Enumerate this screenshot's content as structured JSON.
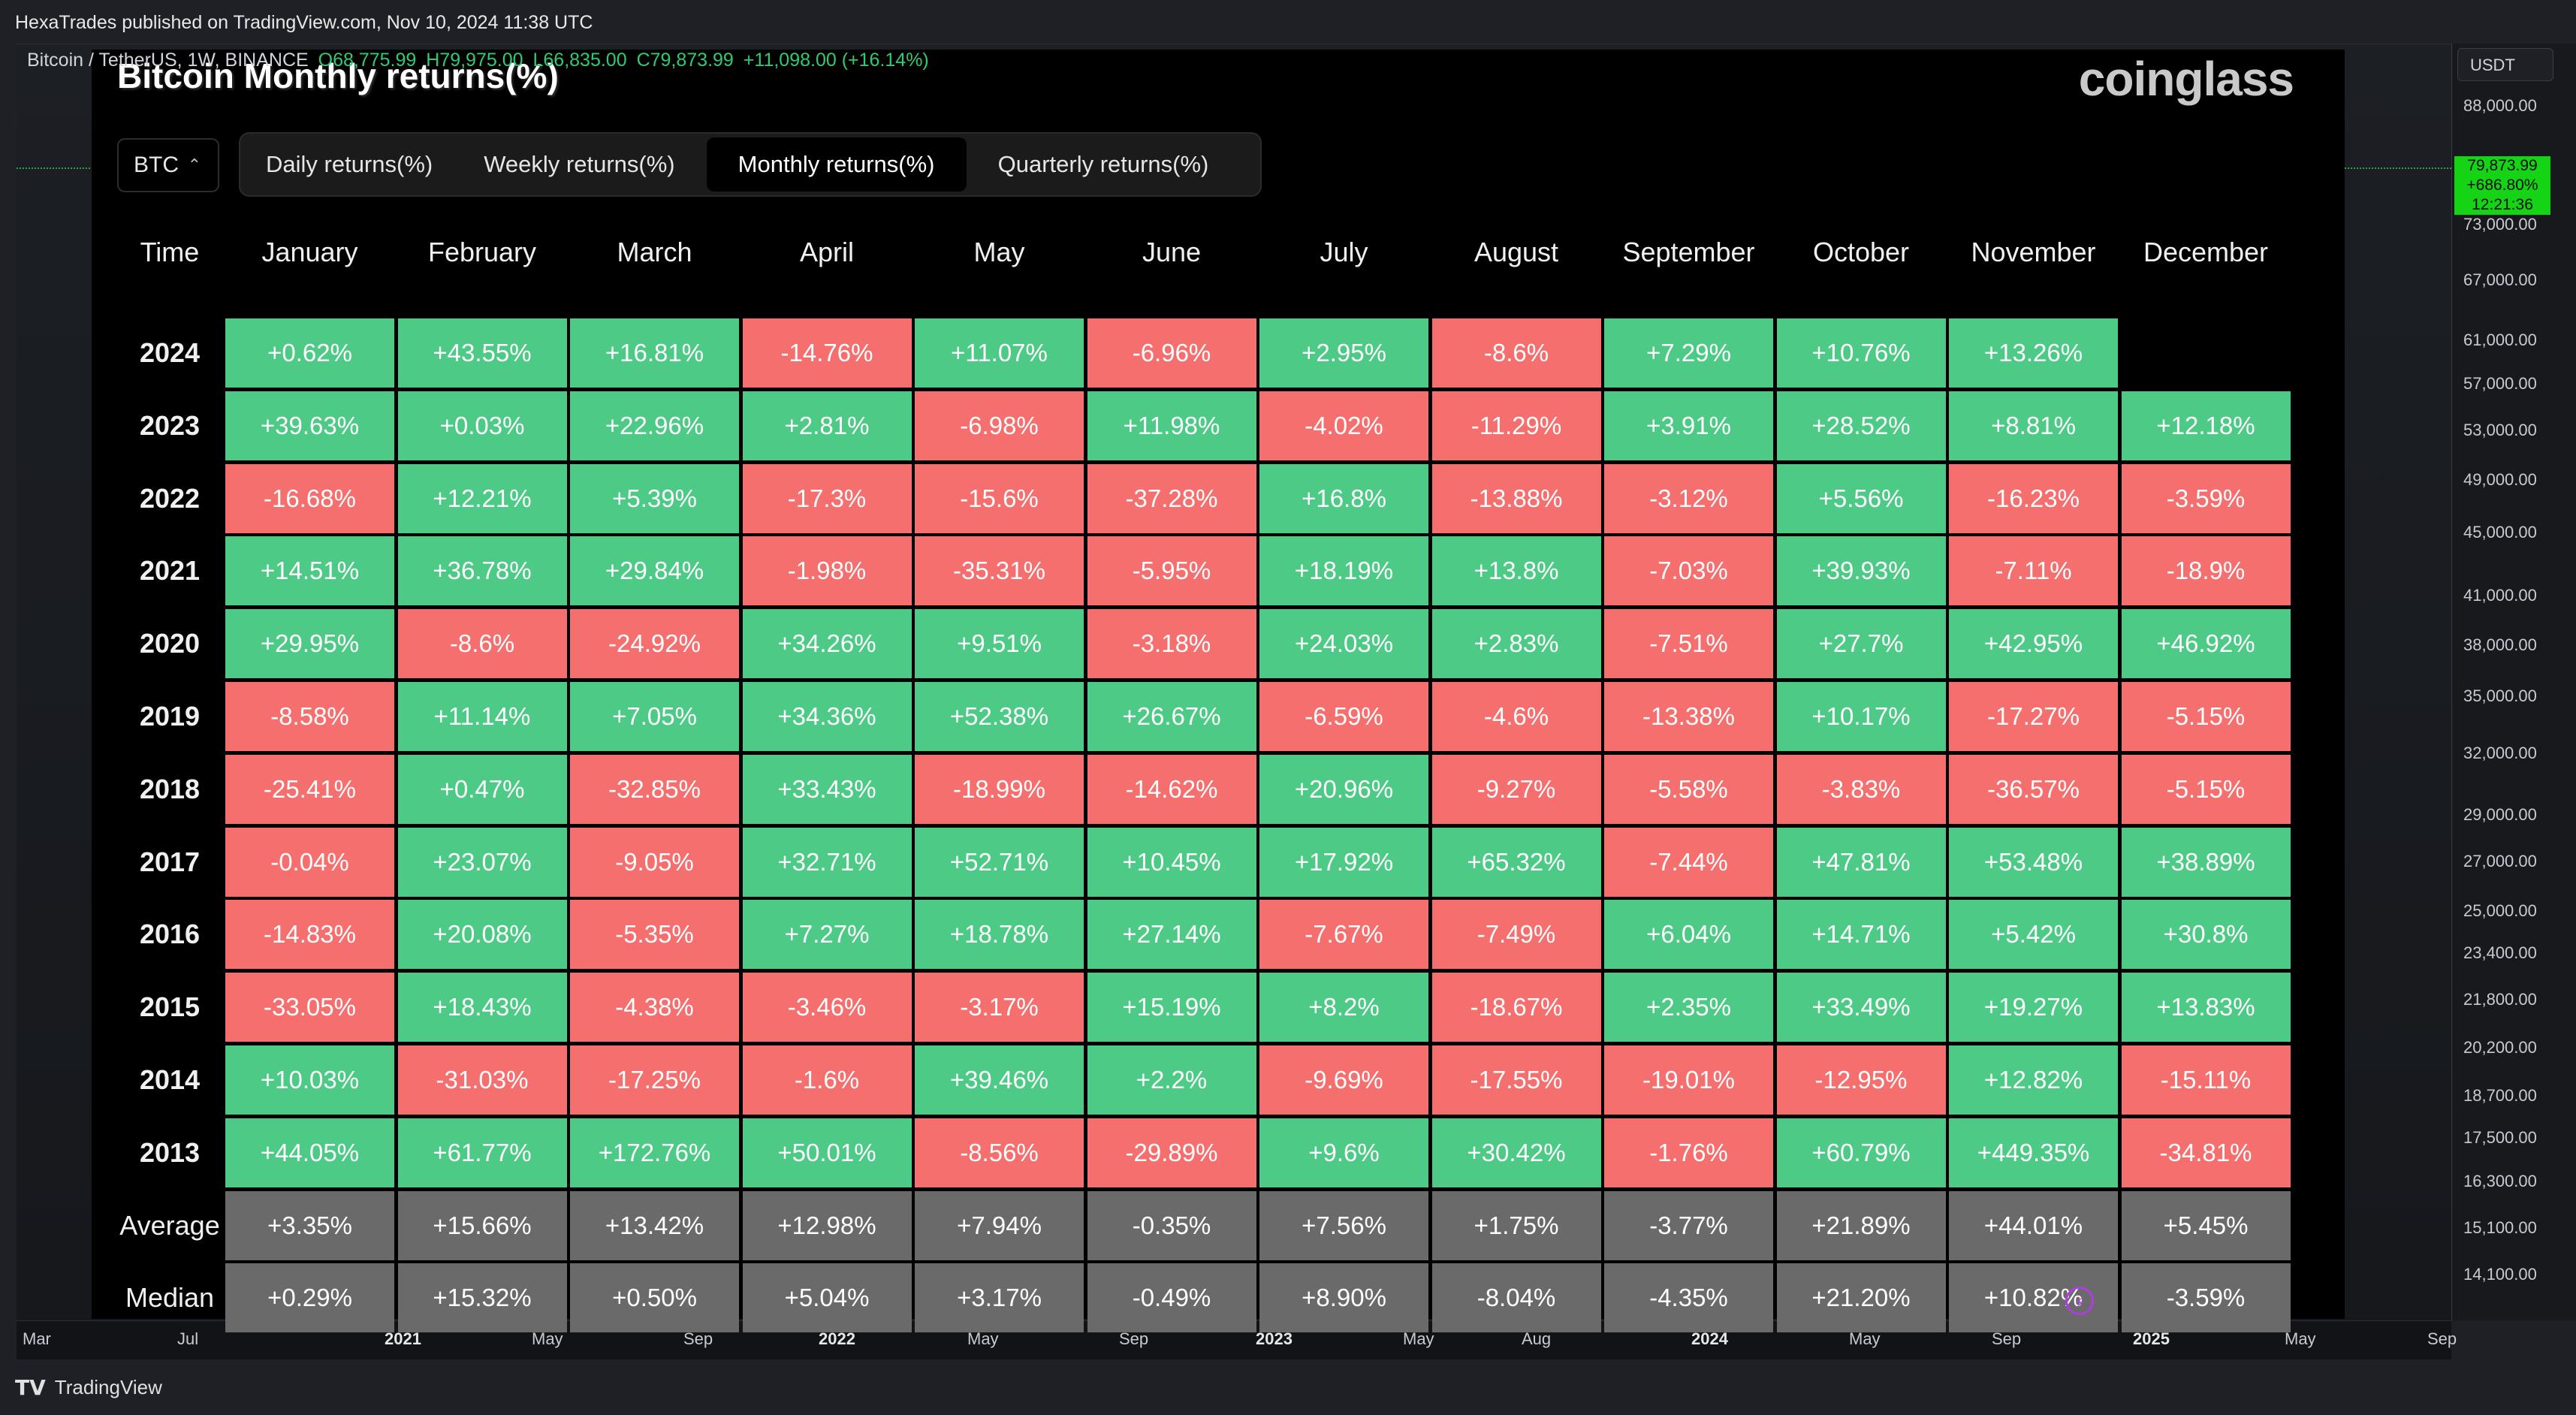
{
  "publish_info": "HexaTrades published on TradingView.com, Nov 10, 2024 11:38 UTC",
  "symbol_line": {
    "name": "Bitcoin / TetherUS, 1W, BINANCE",
    "open": "O68,775.99",
    "high": "H79,975.00",
    "low": "L66,835.00",
    "close": "C79,873.99",
    "change": "+11,098.00 (+16.14%)"
  },
  "right_scale": {
    "currency": "USDT",
    "labels": [
      "88,000.00",
      "73,000.00",
      "67,000.00",
      "61,000.00",
      "57,000.00",
      "53,000.00",
      "49,000.00",
      "45,000.00",
      "41,000.00",
      "38,000.00",
      "35,000.00",
      "32,000.00",
      "29,000.00",
      "27,000.00",
      "25,000.00",
      "23,400.00",
      "21,800.00",
      "20,200.00",
      "18,700.00",
      "17,500.00",
      "16,300.00",
      "15,100.00",
      "14,100.00"
    ],
    "price_tag": {
      "price": "79,873.99",
      "change": "+686.80%",
      "countdown": "12:21:36"
    }
  },
  "time_axis": [
    {
      "label": "Mar",
      "year": false
    },
    {
      "label": "Jul",
      "year": false
    },
    {
      "label": "2021",
      "year": true
    },
    {
      "label": "May",
      "year": false
    },
    {
      "label": "Sep",
      "year": false
    },
    {
      "label": "2022",
      "year": true
    },
    {
      "label": "May",
      "year": false
    },
    {
      "label": "Sep",
      "year": false
    },
    {
      "label": "2023",
      "year": true
    },
    {
      "label": "May",
      "year": false
    },
    {
      "label": "Aug",
      "year": false
    },
    {
      "label": "2024",
      "year": true
    },
    {
      "label": "May",
      "year": false
    },
    {
      "label": "Sep",
      "year": false
    },
    {
      "label": "2025",
      "year": true
    },
    {
      "label": "May",
      "year": false
    },
    {
      "label": "Sep",
      "year": false
    }
  ],
  "footer": {
    "brand": "TradingView",
    "logo": "tradingview-logo"
  },
  "panel": {
    "title": "Bitcoin Monthly returns(%)",
    "brand": "coinglass",
    "coin": "BTC",
    "tabs": [
      {
        "label": "Daily returns(%)",
        "active": false
      },
      {
        "label": "Weekly returns(%)",
        "active": false
      },
      {
        "label": "Monthly returns(%)",
        "active": true
      },
      {
        "label": "Quarterly returns(%)",
        "active": false
      }
    ],
    "corner": "Time",
    "months": [
      "January",
      "February",
      "March",
      "April",
      "May",
      "June",
      "July",
      "August",
      "September",
      "October",
      "November",
      "December"
    ],
    "rows": [
      {
        "label": "2024",
        "kind": "year",
        "values": [
          "+0.62%",
          "+43.55%",
          "+16.81%",
          "-14.76%",
          "+11.07%",
          "-6.96%",
          "+2.95%",
          "-8.6%",
          "+7.29%",
          "+10.76%",
          "+13.26%",
          ""
        ]
      },
      {
        "label": "2023",
        "kind": "year",
        "values": [
          "+39.63%",
          "+0.03%",
          "+22.96%",
          "+2.81%",
          "-6.98%",
          "+11.98%",
          "-4.02%",
          "-11.29%",
          "+3.91%",
          "+28.52%",
          "+8.81%",
          "+12.18%"
        ]
      },
      {
        "label": "2022",
        "kind": "year",
        "values": [
          "-16.68%",
          "+12.21%",
          "+5.39%",
          "-17.3%",
          "-15.6%",
          "-37.28%",
          "+16.8%",
          "-13.88%",
          "-3.12%",
          "+5.56%",
          "-16.23%",
          "-3.59%"
        ]
      },
      {
        "label": "2021",
        "kind": "year",
        "values": [
          "+14.51%",
          "+36.78%",
          "+29.84%",
          "-1.98%",
          "-35.31%",
          "-5.95%",
          "+18.19%",
          "+13.8%",
          "-7.03%",
          "+39.93%",
          "-7.11%",
          "-18.9%"
        ]
      },
      {
        "label": "2020",
        "kind": "year",
        "values": [
          "+29.95%",
          "-8.6%",
          "-24.92%",
          "+34.26%",
          "+9.51%",
          "-3.18%",
          "+24.03%",
          "+2.83%",
          "-7.51%",
          "+27.7%",
          "+42.95%",
          "+46.92%"
        ]
      },
      {
        "label": "2019",
        "kind": "year",
        "values": [
          "-8.58%",
          "+11.14%",
          "+7.05%",
          "+34.36%",
          "+52.38%",
          "+26.67%",
          "-6.59%",
          "-4.6%",
          "-13.38%",
          "+10.17%",
          "-17.27%",
          "-5.15%"
        ]
      },
      {
        "label": "2018",
        "kind": "year",
        "values": [
          "-25.41%",
          "+0.47%",
          "-32.85%",
          "+33.43%",
          "-18.99%",
          "-14.62%",
          "+20.96%",
          "-9.27%",
          "-5.58%",
          "-3.83%",
          "-36.57%",
          "-5.15%"
        ]
      },
      {
        "label": "2017",
        "kind": "year",
        "values": [
          "-0.04%",
          "+23.07%",
          "-9.05%",
          "+32.71%",
          "+52.71%",
          "+10.45%",
          "+17.92%",
          "+65.32%",
          "-7.44%",
          "+47.81%",
          "+53.48%",
          "+38.89%"
        ]
      },
      {
        "label": "2016",
        "kind": "year",
        "values": [
          "-14.83%",
          "+20.08%",
          "-5.35%",
          "+7.27%",
          "+18.78%",
          "+27.14%",
          "-7.67%",
          "-7.49%",
          "+6.04%",
          "+14.71%",
          "+5.42%",
          "+30.8%"
        ]
      },
      {
        "label": "2015",
        "kind": "year",
        "values": [
          "-33.05%",
          "+18.43%",
          "-4.38%",
          "-3.46%",
          "-3.17%",
          "+15.19%",
          "+8.2%",
          "-18.67%",
          "+2.35%",
          "+33.49%",
          "+19.27%",
          "+13.83%"
        ]
      },
      {
        "label": "2014",
        "kind": "year",
        "values": [
          "+10.03%",
          "-31.03%",
          "-17.25%",
          "-1.6%",
          "+39.46%",
          "+2.2%",
          "-9.69%",
          "-17.55%",
          "-19.01%",
          "-12.95%",
          "+12.82%",
          "-15.11%"
        ]
      },
      {
        "label": "2013",
        "kind": "year",
        "values": [
          "+44.05%",
          "+61.77%",
          "+172.76%",
          "+50.01%",
          "-8.56%",
          "-29.89%",
          "+9.6%",
          "+30.42%",
          "-1.76%",
          "+60.79%",
          "+449.35%",
          "-34.81%"
        ]
      },
      {
        "label": "Average",
        "kind": "stat",
        "values": [
          "+3.35%",
          "+15.66%",
          "+13.42%",
          "+12.98%",
          "+7.94%",
          "-0.35%",
          "+7.56%",
          "+1.75%",
          "-3.77%",
          "+21.89%",
          "+44.01%",
          "+5.45%"
        ]
      },
      {
        "label": "Median",
        "kind": "stat",
        "values": [
          "+0.29%",
          "+15.32%",
          "+0.50%",
          "+5.04%",
          "+3.17%",
          "-0.49%",
          "+8.90%",
          "-8.04%",
          "-4.35%",
          "+21.20%",
          "+10.82%",
          "-3.59%"
        ]
      }
    ],
    "colors": {
      "positive": "#4dcb86",
      "negative": "#f56f6f",
      "stat": "#6a6a6a"
    }
  }
}
